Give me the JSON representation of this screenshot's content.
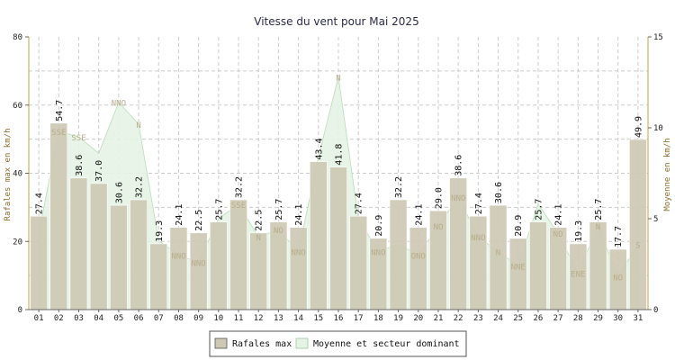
{
  "chart_data": {
    "type": "bar",
    "title": "Vitesse du vent pour Mai 2025",
    "ylabel": "Rafales max en km/h",
    "y2label": "Moyenne en km/h",
    "ylim": [
      0,
      80
    ],
    "y2lim": [
      0,
      15
    ],
    "yticks": [
      "0",
      "20",
      "40",
      "60",
      "80"
    ],
    "y2ticks": [
      "0",
      "5",
      "10",
      "15"
    ],
    "grid": true,
    "legend_position": "bottom",
    "categories": [
      "01",
      "02",
      "03",
      "04",
      "05",
      "06",
      "07",
      "08",
      "09",
      "10",
      "11",
      "12",
      "13",
      "14",
      "15",
      "16",
      "17",
      "18",
      "19",
      "20",
      "21",
      "22",
      "23",
      "24",
      "25",
      "26",
      "27",
      "28",
      "29",
      "30",
      "31"
    ],
    "series": [
      {
        "name": "Rafales max",
        "type": "bar",
        "axis": "left",
        "color": "#cdc9b4",
        "values": [
          27.4,
          54.7,
          38.6,
          37.0,
          30.6,
          32.2,
          19.3,
          24.1,
          22.5,
          25.7,
          32.2,
          22.5,
          25.7,
          24.1,
          43.4,
          41.8,
          27.4,
          20.9,
          32.2,
          24.1,
          29.0,
          38.6,
          27.4,
          30.6,
          20.9,
          25.7,
          24.1,
          19.3,
          25.7,
          17.7,
          49.9
        ],
        "labels": [
          "27.4",
          "54.7",
          "38.6",
          "37.0",
          "30.6",
          "32.2",
          "19.3",
          "24.1",
          "22.5",
          "25.7",
          "32.2",
          "22.5",
          "25.7",
          "24.1",
          "43.4",
          "41.8",
          "27.4",
          "20.9",
          "32.2",
          "24.1",
          "29.0",
          "38.6",
          "27.4",
          "30.6",
          "20.9",
          "25.7",
          "24.1",
          "19.3",
          "25.7",
          "17.7",
          "49.9"
        ]
      },
      {
        "name": "Moyenne et secteur dominant",
        "type": "area",
        "axis": "right",
        "color": "#e4f3e4",
        "values": [
          4.2,
          9.8,
          9.5,
          8.6,
          11.4,
          10.2,
          3.8,
          3.0,
          2.6,
          5.0,
          5.8,
          4.0,
          4.4,
          3.2,
          8.4,
          12.8,
          5.0,
          3.2,
          3.6,
          3.0,
          4.6,
          6.2,
          4.0,
          3.2,
          2.4,
          5.8,
          4.2,
          2.0,
          4.6,
          1.8,
          3.6
        ],
        "directions": [
          "",
          "SSE",
          "SSE",
          "",
          "NNO",
          "N",
          "",
          "NNO",
          "NNO",
          "",
          "SSE",
          "N",
          "NO",
          "NNO",
          "",
          "N",
          "",
          "NNO",
          "",
          "ONO",
          "NO",
          "NNO",
          "NNO",
          "N",
          "NNE",
          "",
          "NO",
          "ENE",
          "N",
          "NO",
          "S"
        ]
      }
    ]
  },
  "legend": {
    "items": [
      {
        "label": "Rafales max",
        "color": "#cdc9b4"
      },
      {
        "label": "Moyenne et secteur dominant",
        "color": "#e4f3e4"
      }
    ]
  }
}
